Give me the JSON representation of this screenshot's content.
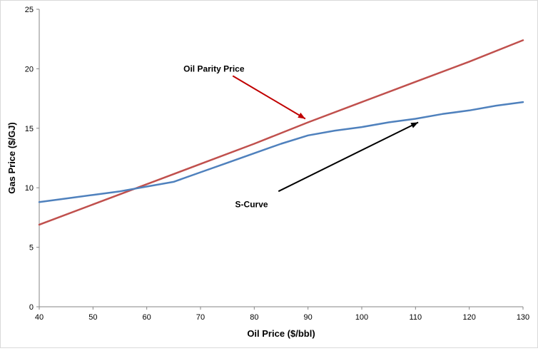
{
  "chart_data": {
    "type": "line",
    "title": "",
    "xlabel": "Oil Price ($/bbl)",
    "ylabel": "Gas Price ($/GJ)",
    "xlim": [
      40,
      130
    ],
    "ylim": [
      0,
      25
    ],
    "x_ticks": [
      40,
      50,
      60,
      70,
      80,
      90,
      100,
      110,
      120,
      130
    ],
    "y_ticks": [
      0,
      5,
      10,
      15,
      20,
      25
    ],
    "grid": false,
    "legend": "none",
    "series": [
      {
        "label": "Oil Parity Price",
        "color": "#c0504d",
        "x": [
          40,
          50,
          60,
          70,
          80,
          90,
          100,
          110,
          120,
          130
        ],
        "y": [
          6.9,
          8.6,
          10.3,
          12.0,
          13.7,
          15.5,
          17.2,
          18.9,
          20.6,
          22.4
        ]
      },
      {
        "label": "S-Curve",
        "color": "#4f81bd",
        "x": [
          40,
          45,
          50,
          55,
          60,
          65,
          70,
          75,
          80,
          85,
          90,
          95,
          100,
          105,
          110,
          115,
          120,
          125,
          130
        ],
        "y": [
          8.8,
          9.1,
          9.4,
          9.7,
          10.1,
          10.5,
          11.3,
          12.1,
          12.9,
          13.7,
          14.4,
          14.8,
          15.1,
          15.5,
          15.8,
          16.2,
          16.5,
          16.9,
          17.2
        ]
      }
    ],
    "annotations": [
      {
        "text": "Oil Parity Price",
        "arrow_color": "#c00000",
        "label_at": [
          72.5,
          20.0
        ],
        "arrow_from": [
          76.0,
          19.4
        ],
        "arrow_to": [
          89.5,
          15.8
        ]
      },
      {
        "text": "S-Curve",
        "arrow_color": "#000000",
        "label_at": [
          79.5,
          8.6
        ],
        "arrow_from": [
          84.5,
          9.7
        ],
        "arrow_to": [
          110.5,
          15.5
        ]
      }
    ]
  }
}
